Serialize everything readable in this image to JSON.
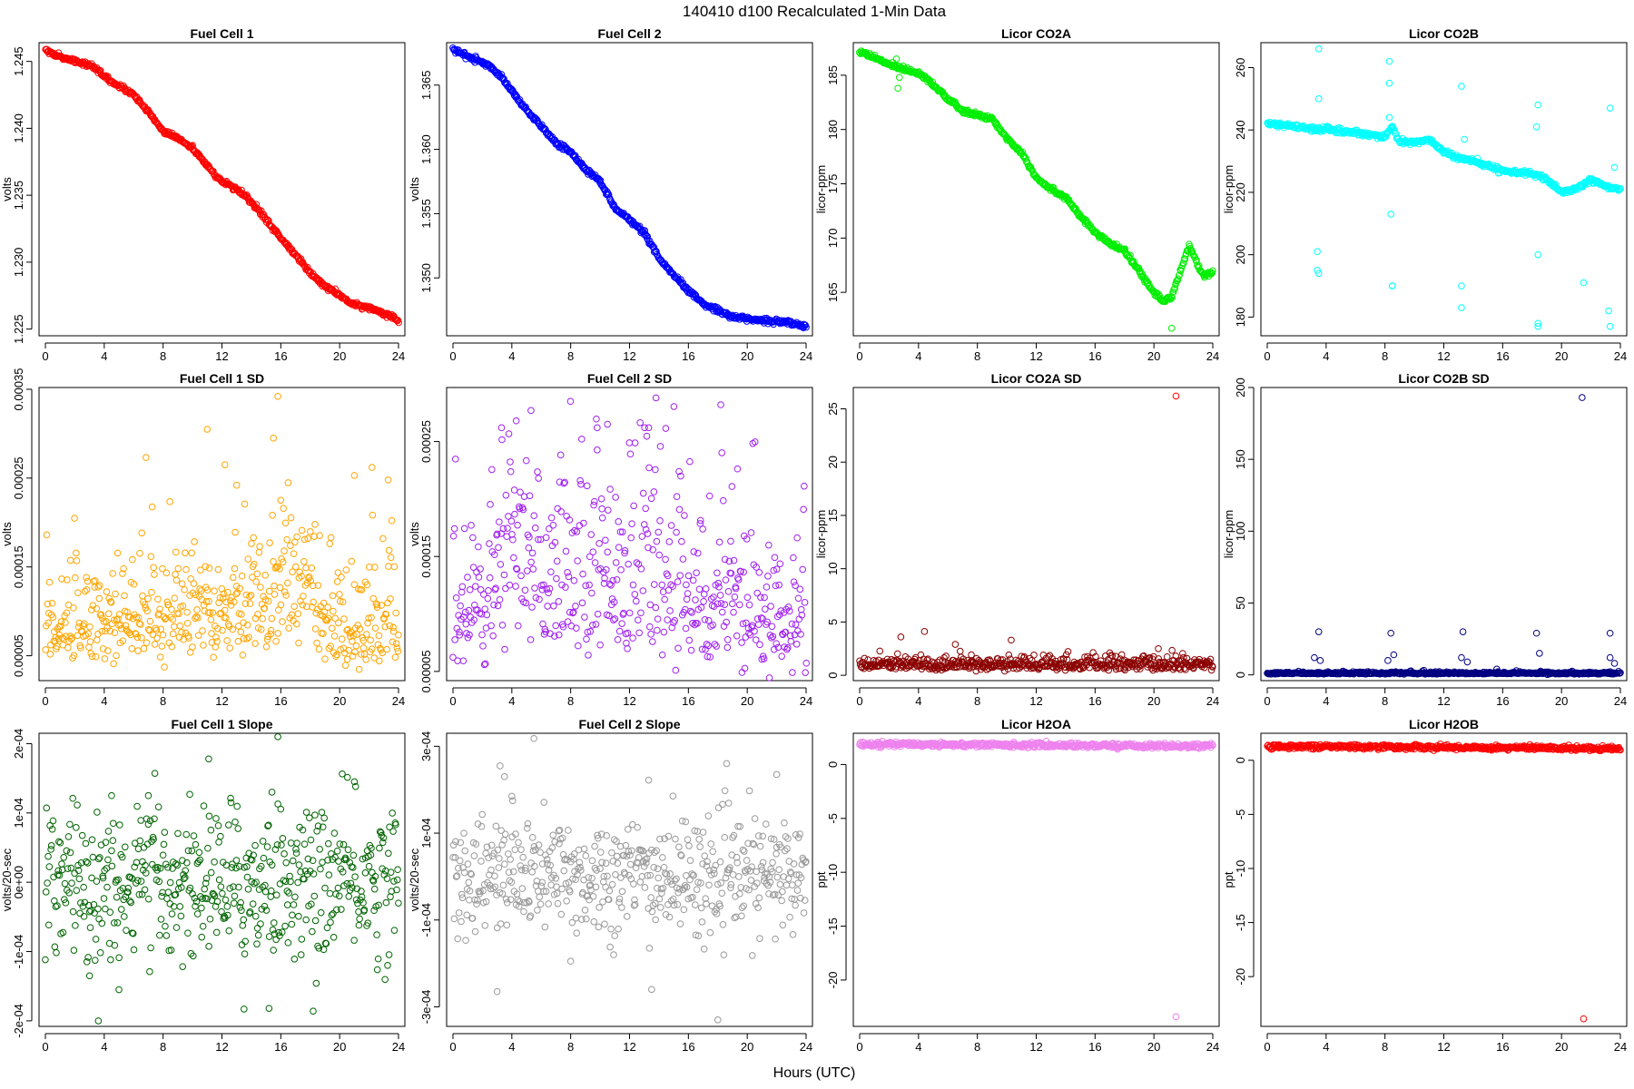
{
  "figure": {
    "title": "140410    d100    Recalculated 1-Min Data",
    "xlabel": "Hours (UTC)"
  },
  "chart_data": [
    {
      "type": "scatter",
      "title": "Fuel Cell 1",
      "ylabel": "volts",
      "color": "#ff0000",
      "xlim": [
        0,
        24
      ],
      "xticks": [
        0,
        4,
        8,
        12,
        16,
        20,
        24
      ],
      "ylim": [
        1.2245,
        1.2464
      ],
      "yticks": [
        "1.225",
        "1.230",
        "1.235",
        "1.240",
        "1.245"
      ],
      "trend": [
        [
          0,
          1.246
        ],
        [
          0.5,
          1.2455
        ],
        [
          1.5,
          1.2452
        ],
        [
          3,
          1.2447
        ],
        [
          3.5,
          1.2444
        ],
        [
          4,
          1.2438
        ],
        [
          5,
          1.2432
        ],
        [
          6,
          1.2425
        ],
        [
          7,
          1.2412
        ],
        [
          8,
          1.2398
        ],
        [
          9,
          1.2393
        ],
        [
          10,
          1.2385
        ],
        [
          11,
          1.2372
        ],
        [
          12,
          1.236
        ],
        [
          13,
          1.2355
        ],
        [
          14,
          1.2345
        ],
        [
          15,
          1.2332
        ],
        [
          16,
          1.2318
        ],
        [
          17,
          1.2305
        ],
        [
          18,
          1.2292
        ],
        [
          19,
          1.2282
        ],
        [
          20,
          1.2275
        ],
        [
          21,
          1.2268
        ],
        [
          22,
          1.2266
        ],
        [
          23,
          1.2262
        ],
        [
          24,
          1.2256
        ]
      ]
    },
    {
      "type": "scatter",
      "title": "Fuel Cell 2",
      "ylabel": "volts",
      "color": "#0000ff",
      "xlim": [
        0,
        24
      ],
      "xticks": [
        0,
        4,
        8,
        12,
        16,
        20,
        24
      ],
      "ylim": [
        1.3455,
        1.3683
      ],
      "yticks": [
        "1.350",
        "1.355",
        "1.360",
        "1.365"
      ],
      "trend": [
        [
          0,
          1.3678
        ],
        [
          1,
          1.3672
        ],
        [
          2,
          1.3668
        ],
        [
          3,
          1.366
        ],
        [
          4,
          1.3645
        ],
        [
          5,
          1.363
        ],
        [
          6,
          1.3618
        ],
        [
          7,
          1.3605
        ],
        [
          8,
          1.3598
        ],
        [
          9,
          1.3585
        ],
        [
          10,
          1.3575
        ],
        [
          11,
          1.3555
        ],
        [
          12,
          1.3545
        ],
        [
          13,
          1.3535
        ],
        [
          14,
          1.3515
        ],
        [
          15,
          1.3502
        ],
        [
          16,
          1.349
        ],
        [
          17,
          1.348
        ],
        [
          18,
          1.3475
        ],
        [
          19,
          1.347
        ],
        [
          20,
          1.3468
        ],
        [
          21,
          1.3467
        ],
        [
          22,
          1.3466
        ],
        [
          23,
          1.3465
        ],
        [
          24,
          1.3462
        ]
      ]
    },
    {
      "type": "scatter",
      "title": "Licor CO2A",
      "ylabel": "licor-ppm",
      "color": "#00ee00",
      "xlim": [
        0,
        24
      ],
      "xticks": [
        0,
        4,
        8,
        12,
        16,
        20,
        24
      ],
      "ylim": [
        161,
        188
      ],
      "yticks": [
        "165",
        "170",
        "175",
        "180",
        "185"
      ],
      "trend": [
        [
          0,
          187.2
        ],
        [
          1,
          186.6
        ],
        [
          2,
          186.0
        ],
        [
          3,
          185.6
        ],
        [
          4,
          185.2
        ],
        [
          4.5,
          184.8
        ],
        [
          6,
          182.8
        ],
        [
          7,
          181.7
        ],
        [
          8,
          181.3
        ],
        [
          9,
          181.0
        ],
        [
          10,
          179.2
        ],
        [
          11,
          177.9
        ],
        [
          12,
          175.6
        ],
        [
          13,
          174.5
        ],
        [
          14,
          173.8
        ],
        [
          15,
          172.0
        ],
        [
          16,
          170.5
        ],
        [
          17,
          169.5
        ],
        [
          18,
          168.8
        ],
        [
          19,
          167.0
        ],
        [
          20,
          165.0
        ],
        [
          20.6,
          164.2
        ],
        [
          21.2,
          164.5
        ],
        [
          21.8,
          167.0
        ],
        [
          22.4,
          169.3
        ],
        [
          23.0,
          167.5
        ],
        [
          23.4,
          166.5
        ],
        [
          24,
          166.8
        ]
      ],
      "outliers": [
        [
          2.6,
          183.8
        ],
        [
          2.7,
          184.8
        ],
        [
          2.5,
          186.5
        ],
        [
          21.2,
          161.7
        ]
      ]
    },
    {
      "type": "scatter",
      "title": "Licor CO2B",
      "ylabel": "licor-ppm",
      "color": "#00ffff",
      "xlim": [
        0,
        24
      ],
      "xticks": [
        0,
        4,
        8,
        12,
        16,
        20,
        24
      ],
      "ylim": [
        174,
        268
      ],
      "yticks": [
        "180",
        "200",
        "220",
        "240",
        "260"
      ],
      "trend": [
        [
          0,
          242
        ],
        [
          2,
          241
        ],
        [
          3.5,
          240
        ],
        [
          4,
          240.5
        ],
        [
          6,
          239
        ],
        [
          8,
          238
        ],
        [
          8.5,
          241
        ],
        [
          9,
          236
        ],
        [
          10,
          236
        ],
        [
          11,
          237
        ],
        [
          12,
          233
        ],
        [
          13,
          231
        ],
        [
          14,
          230
        ],
        [
          16,
          227
        ],
        [
          18,
          226
        ],
        [
          19,
          224
        ],
        [
          20,
          220
        ],
        [
          21,
          221
        ],
        [
          22,
          224
        ],
        [
          23,
          222
        ],
        [
          24,
          221
        ]
      ],
      "outliers": [
        [
          3.5,
          266
        ],
        [
          3.5,
          250
        ],
        [
          3.4,
          201
        ],
        [
          3.4,
          195
        ],
        [
          3.5,
          194
        ],
        [
          8.3,
          262
        ],
        [
          8.3,
          255
        ],
        [
          8.3,
          244
        ],
        [
          8.4,
          213
        ],
        [
          8.5,
          190
        ],
        [
          8.5,
          190
        ],
        [
          13.2,
          254
        ],
        [
          13.2,
          190
        ],
        [
          13.2,
          183
        ],
        [
          13.4,
          237
        ],
        [
          18.4,
          248
        ],
        [
          18.3,
          241
        ],
        [
          18.4,
          200
        ],
        [
          18.4,
          178
        ],
        [
          18.4,
          177
        ],
        [
          21.5,
          191
        ],
        [
          23.3,
          247
        ],
        [
          23.2,
          182
        ],
        [
          23.3,
          177
        ],
        [
          23.6,
          228
        ]
      ]
    },
    {
      "type": "scatter",
      "title": "Fuel Cell 1 SD",
      "ylabel": "volts",
      "color": "#ffa500",
      "xlim": [
        0,
        24
      ],
      "xticks": [
        0,
        4,
        8,
        12,
        16,
        20,
        24
      ],
      "ylim": [
        2.2e-05,
        0.000352
      ],
      "yticks": [
        "0.00005",
        "0.00015",
        "0.00025",
        "0.00035"
      ],
      "ylevels": [
        [
          0,
          8.5e-05
        ],
        [
          4,
          9e-05
        ],
        [
          8,
          9.8e-05
        ],
        [
          12,
          0.000108
        ],
        [
          15,
          0.000115
        ],
        [
          17,
          0.000135
        ],
        [
          18,
          0.00014
        ],
        [
          18.6,
          8.5e-05
        ],
        [
          21,
          8.5e-05
        ],
        [
          24,
          8.5e-05
        ]
      ],
      "outliers": [
        [
          15.8,
          0.000342
        ],
        [
          11.0,
          0.000305
        ],
        [
          15.5,
          0.000295
        ],
        [
          12.2,
          0.000265
        ],
        [
          21.0,
          0.000253
        ],
        [
          22.2,
          0.000262
        ],
        [
          23.3,
          0.000248
        ],
        [
          13.0,
          0.000242
        ],
        [
          16.0,
          0.000225
        ]
      ]
    },
    {
      "type": "scatter",
      "title": "Fuel Cell 2 SD",
      "ylabel": "volts",
      "color": "#a020f0",
      "xlim": [
        0,
        24
      ],
      "xticks": [
        0,
        4,
        8,
        12,
        16,
        20,
        24
      ],
      "ylim": [
        4.2e-05,
        0.000297
      ],
      "yticks": [
        "0.00005",
        "0.00015",
        "0.00025"
      ],
      "ylevels": [
        [
          0,
          9.5e-05
        ],
        [
          4,
          0.00014
        ],
        [
          8,
          0.00015
        ],
        [
          12,
          0.00014
        ],
        [
          16,
          0.000125
        ],
        [
          20,
          0.0001
        ],
        [
          24,
          9.5e-05
        ]
      ],
      "outliers": [
        [
          13.8,
          0.000288
        ],
        [
          18.2,
          0.000282
        ],
        [
          5.3,
          0.000277
        ],
        [
          3.3,
          0.000262
        ],
        [
          4.3,
          0.000268
        ],
        [
          9.8,
          0.000262
        ],
        [
          13.3,
          0.000262
        ],
        [
          10.5,
          0.000265
        ]
      ]
    },
    {
      "type": "scatter",
      "title": "Licor CO2A SD",
      "ylabel": "licor-ppm",
      "color": "#8b0000",
      "xlim": [
        0,
        24
      ],
      "xticks": [
        0,
        4,
        8,
        12,
        16,
        20,
        24
      ],
      "ylim": [
        -0.5,
        27
      ],
      "yticks": [
        "0",
        "5",
        "10",
        "15",
        "20",
        "25"
      ],
      "ylevels": [
        [
          0,
          1.0
        ],
        [
          24,
          1.0
        ]
      ],
      "outliers": [
        [
          21.5,
          26.2
        ],
        [
          2.8,
          3.6
        ],
        [
          10.3,
          3.3
        ],
        [
          6.5,
          2.9
        ],
        [
          20.3,
          2.5
        ],
        [
          17.0,
          2.1
        ]
      ],
      "outlier_colors": [
        "#ff0000"
      ]
    },
    {
      "type": "scatter",
      "title": "Licor CO2B SD",
      "ylabel": "licor-ppm",
      "color": "#000080",
      "xlim": [
        0,
        24
      ],
      "xticks": [
        0,
        4,
        8,
        12,
        16,
        20,
        24
      ],
      "ylim": [
        -4,
        200
      ],
      "yticks": [
        "0",
        "50",
        "100",
        "150",
        "200"
      ],
      "ylevels": [
        [
          0,
          1.2
        ],
        [
          24,
          1.2
        ]
      ],
      "outliers": [
        [
          21.4,
          193
        ],
        [
          3.5,
          30
        ],
        [
          8.4,
          29
        ],
        [
          13.3,
          30
        ],
        [
          18.3,
          29
        ],
        [
          23.3,
          29
        ],
        [
          3.2,
          12
        ],
        [
          3.6,
          10
        ],
        [
          8.2,
          10
        ],
        [
          8.6,
          14
        ],
        [
          13.2,
          12
        ],
        [
          13.6,
          9
        ],
        [
          18.5,
          15
        ],
        [
          23.3,
          12
        ],
        [
          23.6,
          8
        ],
        [
          15.6,
          4
        ]
      ]
    },
    {
      "type": "scatter",
      "title": "Fuel Cell 1 Slope",
      "ylabel": "volts/20-sec",
      "color": "#006400",
      "xlim": [
        0,
        24
      ],
      "xticks": [
        0,
        4,
        8,
        12,
        16,
        20,
        24
      ],
      "ylim": [
        -0.000208,
        0.000215
      ],
      "yticks": [
        "-2e-04",
        "-1e-04",
        "0e+00",
        "1e-04",
        "2e-04"
      ],
      "spread": 5.5e-05,
      "outliers": [
        [
          15.8,
          0.00021
        ],
        [
          11.1,
          0.000178
        ],
        [
          3.6,
          -0.0002
        ],
        [
          13.5,
          -0.000183
        ],
        [
          15.2,
          -0.000182
        ],
        [
          18.2,
          -0.000186
        ],
        [
          5.0,
          -0.000155
        ],
        [
          3.0,
          -0.000135
        ],
        [
          15.4,
          0.00013
        ],
        [
          21.0,
          0.000145
        ],
        [
          4.5,
          0.000125
        ],
        [
          7.0,
          0.000125
        ]
      ]
    },
    {
      "type": "scatter",
      "title": "Fuel Cell 2 Slope",
      "ylabel": "volts/20-sec",
      "color": "#999999",
      "xlim": [
        0,
        24
      ],
      "xticks": [
        0,
        4,
        8,
        12,
        16,
        20,
        24
      ],
      "ylim": [
        -0.000345,
        0.00033
      ],
      "yticks": [
        "-3e-04",
        "-1e-04",
        "1e-04",
        "3e-04"
      ],
      "spread": 6.8e-05,
      "outliers": [
        [
          5.5,
          0.000318
        ],
        [
          18.0,
          -0.00033
        ],
        [
          3.2,
          0.000255
        ],
        [
          3.5,
          0.00023
        ],
        [
          13.5,
          -0.00026
        ],
        [
          3.0,
          -0.000265
        ],
        [
          22.0,
          0.000235
        ],
        [
          13.3,
          0.000222
        ],
        [
          8.0,
          -0.000195
        ],
        [
          4.0,
          0.000185
        ]
      ]
    },
    {
      "type": "scatter",
      "title": "Licor H2OA",
      "ylabel": "ppt",
      "color": "#ee82ee",
      "xlim": [
        0,
        24
      ],
      "xticks": [
        0,
        4,
        8,
        12,
        16,
        20,
        24
      ],
      "ylim": [
        -24.3,
        2.9
      ],
      "yticks": [
        "0",
        "-5",
        "-10",
        "-15",
        "-20"
      ],
      "trend": [
        [
          0,
          1.9
        ],
        [
          12,
          1.8
        ],
        [
          24,
          1.7
        ]
      ],
      "outliers": [
        [
          21.5,
          -23.4
        ]
      ]
    },
    {
      "type": "scatter",
      "title": "Licor H2OB",
      "ylabel": "ppt",
      "color": "#ff0000",
      "xlim": [
        0,
        24
      ],
      "xticks": [
        0,
        4,
        8,
        12,
        16,
        20,
        24
      ],
      "ylim": [
        -24.6,
        2.5
      ],
      "yticks": [
        "0",
        "-5",
        "-10",
        "-15",
        "-20"
      ],
      "trend": [
        [
          0,
          1.3
        ],
        [
          12,
          1.2
        ],
        [
          24,
          1.1
        ]
      ],
      "outliers": [
        [
          21.5,
          -23.9
        ]
      ]
    }
  ]
}
